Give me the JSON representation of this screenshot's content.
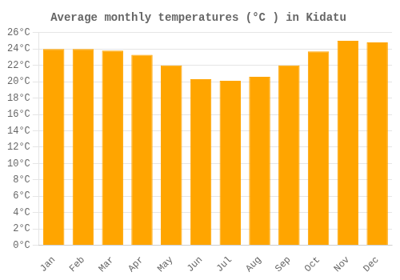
{
  "chart_data": {
    "type": "bar",
    "title": "Average monthly temperatures (°C ) in Kidatu",
    "categories": [
      "Jan",
      "Feb",
      "Mar",
      "Apr",
      "May",
      "Jun",
      "Jul",
      "Aug",
      "Sep",
      "Oct",
      "Nov",
      "Dec"
    ],
    "values": [
      24.0,
      24.0,
      23.8,
      23.3,
      22.0,
      20.3,
      20.1,
      20.6,
      22.0,
      23.7,
      25.0,
      24.8
    ],
    "color": "#FFA500",
    "ylim": [
      0,
      26
    ],
    "yticks": [
      {
        "value": 0,
        "label": "0°C"
      },
      {
        "value": 2,
        "label": "2°C"
      },
      {
        "value": 4,
        "label": "4°C"
      },
      {
        "value": 6,
        "label": "6°C"
      },
      {
        "value": 8,
        "label": "8°C"
      },
      {
        "value": 10,
        "label": "10°C"
      },
      {
        "value": 12,
        "label": "12°C"
      },
      {
        "value": 14,
        "label": "14°C"
      },
      {
        "value": 16,
        "label": "16°C"
      },
      {
        "value": 18,
        "label": "18°C"
      },
      {
        "value": 20,
        "label": "20°C"
      },
      {
        "value": 22,
        "label": "22°C"
      },
      {
        "value": 24,
        "label": "24°C"
      },
      {
        "value": 26,
        "label": "26°C"
      }
    ],
    "grid": true
  }
}
